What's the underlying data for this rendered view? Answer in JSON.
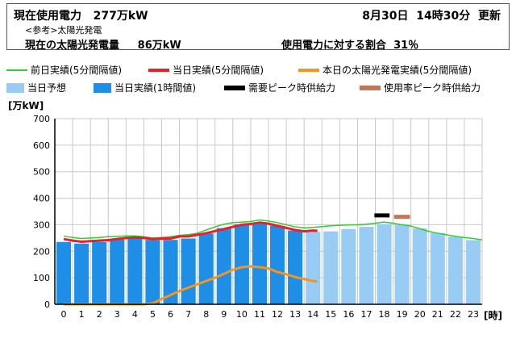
{
  "header": {
    "current_usage_label": "現在使用電力",
    "current_usage_value": "277万kW",
    "date": "8月30日",
    "time": "14時30分",
    "update": "更新",
    "reference": "<参考>太陽光発電",
    "solar_label": "現在の太陽光発電量",
    "solar_value": "86万kW",
    "ratio_label": "使用電力に対する割合",
    "ratio_value": "31％"
  },
  "legend": {
    "prev_day": "前日実績(5分間隔値)",
    "today_5min": "当日実績(5分間隔値)",
    "solar_5min": "本日の太陽光発電実績(5分間隔値)",
    "forecast": "当日予想",
    "actual_hourly": "当日実績(1時間値)",
    "demand_peak": "需要ピーク時供給力",
    "usage_peak": "使用率ピーク時供給力"
  },
  "colors": {
    "prev_day": "#33cc33",
    "today_5min": "#e8202a",
    "solar": "#f7941d",
    "forecast": "#99ccf5",
    "actual": "#1e8ee6",
    "demand_peak": "#000000",
    "usage_peak": "#c0785a"
  },
  "chart_data": {
    "type": "bar",
    "ylabel": "[万kW]",
    "xlabel": "[時]",
    "ylim": [
      0,
      700
    ],
    "yticks": [
      0,
      100,
      200,
      300,
      400,
      500,
      600,
      700
    ],
    "categories": [
      "0",
      "1",
      "2",
      "3",
      "4",
      "5",
      "6",
      "7",
      "8",
      "9",
      "10",
      "11",
      "12",
      "13",
      "14",
      "15",
      "16",
      "17",
      "18",
      "19",
      "20",
      "21",
      "22",
      "23"
    ],
    "grid": true,
    "actual_hourly": [
      235,
      229,
      235,
      244,
      248,
      243,
      243,
      248,
      267,
      287,
      302,
      307,
      296,
      278
    ],
    "forecast": [
      null,
      null,
      null,
      null,
      null,
      null,
      null,
      null,
      null,
      null,
      null,
      null,
      null,
      null,
      273,
      275,
      284,
      292,
      303,
      300,
      286,
      269,
      255,
      242
    ],
    "demand_peak_supply": {
      "hour": 18,
      "value": 335
    },
    "usage_peak_supply": {
      "hour": 19,
      "value": 330
    },
    "prev_day_5min": [
      [
        0,
        257
      ],
      [
        0.5,
        252
      ],
      [
        1,
        248
      ],
      [
        1.5,
        250
      ],
      [
        2,
        252
      ],
      [
        2.5,
        255
      ],
      [
        3,
        256
      ],
      [
        3.5,
        258
      ],
      [
        4,
        258
      ],
      [
        4.5,
        255
      ],
      [
        5,
        250
      ],
      [
        5.5,
        252
      ],
      [
        6,
        255
      ],
      [
        6.5,
        260
      ],
      [
        7,
        263
      ],
      [
        7.5,
        268
      ],
      [
        8,
        280
      ],
      [
        8.5,
        292
      ],
      [
        9,
        302
      ],
      [
        9.5,
        308
      ],
      [
        10,
        310
      ],
      [
        10.5,
        312
      ],
      [
        11,
        318
      ],
      [
        11.5,
        314
      ],
      [
        12,
        308
      ],
      [
        12.5,
        300
      ],
      [
        13,
        292
      ],
      [
        13.5,
        288
      ],
      [
        14,
        290
      ],
      [
        14.5,
        293
      ],
      [
        15,
        296
      ],
      [
        15.5,
        298
      ],
      [
        16,
        299
      ],
      [
        16.5,
        300
      ],
      [
        17,
        302
      ],
      [
        17.5,
        306
      ],
      [
        18,
        310
      ],
      [
        18.5,
        306
      ],
      [
        19,
        300
      ],
      [
        19.5,
        295
      ],
      [
        20,
        285
      ],
      [
        20.5,
        275
      ],
      [
        21,
        268
      ],
      [
        21.5,
        262
      ],
      [
        22,
        256
      ],
      [
        22.5,
        252
      ],
      [
        23,
        248
      ],
      [
        23.5,
        243
      ]
    ],
    "today_5min": [
      [
        0,
        246
      ],
      [
        0.5,
        240
      ],
      [
        1,
        236
      ],
      [
        1.5,
        238
      ],
      [
        2,
        240
      ],
      [
        2.5,
        242
      ],
      [
        3,
        246
      ],
      [
        3.5,
        250
      ],
      [
        4,
        252
      ],
      [
        4.5,
        250
      ],
      [
        5,
        246
      ],
      [
        5.5,
        248
      ],
      [
        6,
        248
      ],
      [
        6.5,
        256
      ],
      [
        7,
        256
      ],
      [
        7.5,
        262
      ],
      [
        8,
        268
      ],
      [
        8.5,
        276
      ],
      [
        9,
        284
      ],
      [
        9.5,
        292
      ],
      [
        10,
        300
      ],
      [
        10.5,
        303
      ],
      [
        11,
        308
      ],
      [
        11.5,
        304
      ],
      [
        12,
        296
      ],
      [
        12.5,
        288
      ],
      [
        13,
        280
      ],
      [
        13.5,
        275
      ],
      [
        14,
        278
      ],
      [
        14.25,
        277
      ]
    ],
    "solar_5min": [
      [
        0,
        0
      ],
      [
        0.5,
        0
      ],
      [
        1,
        0
      ],
      [
        1.5,
        0
      ],
      [
        2,
        0
      ],
      [
        2.5,
        0
      ],
      [
        3,
        0
      ],
      [
        3.5,
        0
      ],
      [
        4,
        0
      ],
      [
        4.5,
        0
      ],
      [
        5,
        4
      ],
      [
        5.5,
        20
      ],
      [
        6,
        35
      ],
      [
        6.5,
        50
      ],
      [
        7,
        63
      ],
      [
        7.5,
        75
      ],
      [
        8,
        88
      ],
      [
        8.5,
        100
      ],
      [
        9,
        115
      ],
      [
        9.5,
        130
      ],
      [
        10,
        140
      ],
      [
        10.5,
        143
      ],
      [
        11,
        140
      ],
      [
        11.5,
        135
      ],
      [
        12,
        122
      ],
      [
        12.5,
        113
      ],
      [
        13,
        103
      ],
      [
        13.5,
        95
      ],
      [
        14,
        88
      ],
      [
        14.25,
        86
      ]
    ]
  }
}
